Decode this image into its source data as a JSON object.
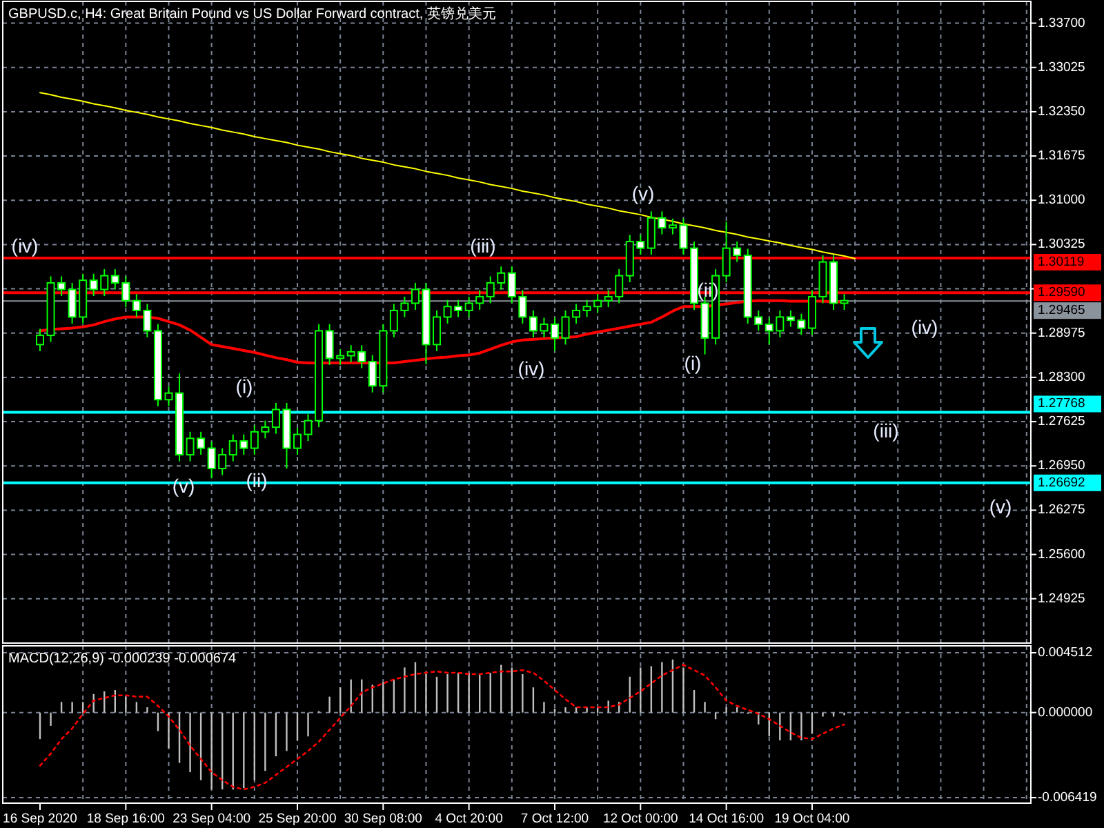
{
  "chart_data": [
    {
      "type": "candlestick",
      "title": "GBPUSD.c, H4:  Great Britain Pound vs US Dollar Forward contract, 英镑兑美元",
      "color": "#00ff00",
      "categories": [
        null,
        null,
        null,
        null,
        null,
        null,
        null,
        null,
        null,
        null,
        null,
        null,
        null,
        null,
        null,
        null,
        null,
        null,
        null,
        null,
        null,
        null,
        null,
        null,
        null,
        null,
        null,
        null,
        null,
        null,
        null,
        null,
        null,
        null,
        null,
        null,
        null,
        null,
        null,
        null,
        null,
        null,
        null,
        null,
        null,
        null,
        null,
        null,
        null,
        null,
        null,
        null,
        null,
        null,
        null,
        null,
        null,
        null,
        null,
        null,
        null,
        null,
        null,
        null,
        null,
        null,
        null,
        null,
        null,
        null,
        null,
        null,
        null,
        null,
        null,
        null,
        null,
        null,
        null,
        null,
        null,
        null,
        null,
        null,
        null,
        null,
        null,
        null,
        null,
        null,
        null,
        null,
        null
      ],
      "ohlc": [
        [
          1.288,
          1.2904,
          1.287,
          1.2894
        ],
        [
          1.2894,
          1.2984,
          1.2884,
          1.2974
        ],
        [
          1.2974,
          1.2984,
          1.2954,
          1.2964
        ],
        [
          1.2964,
          1.2974,
          1.2912,
          1.2922
        ],
        [
          1.2922,
          1.2988,
          1.2912,
          1.2978
        ],
        [
          1.2978,
          1.2988,
          1.2954,
          1.2964
        ],
        [
          1.2964,
          1.2995,
          1.2954,
          1.2985
        ],
        [
          1.2985,
          1.2995,
          1.2964,
          1.2974
        ],
        [
          1.2974,
          1.2984,
          1.2937,
          1.2947
        ],
        [
          1.2947,
          1.2957,
          1.2922,
          1.2932
        ],
        [
          1.2932,
          1.2942,
          1.2891,
          1.2901
        ],
        [
          1.2901,
          1.2911,
          1.2786,
          1.2796
        ],
        [
          1.2796,
          1.2816,
          1.2786,
          1.2806
        ],
        [
          1.2806,
          1.2836,
          1.2702,
          1.2712
        ],
        [
          1.2712,
          1.2747,
          1.2702,
          1.2737
        ],
        [
          1.2737,
          1.2747,
          1.2712,
          1.2722
        ],
        [
          1.2722,
          1.2732,
          1.2676,
          1.2691
        ],
        [
          1.2691,
          1.2722,
          1.2681,
          1.2712
        ],
        [
          1.2712,
          1.2743,
          1.2702,
          1.2733
        ],
        [
          1.2733,
          1.2743,
          1.2712,
          1.2722
        ],
        [
          1.2722,
          1.2757,
          1.2712,
          1.2747
        ],
        [
          1.2747,
          1.2764,
          1.2737,
          1.2754
        ],
        [
          1.2754,
          1.2791,
          1.2744,
          1.2781
        ],
        [
          1.2781,
          1.2791,
          1.2691,
          1.2722
        ],
        [
          1.2722,
          1.2753,
          1.2712,
          1.2743
        ],
        [
          1.2743,
          1.2774,
          1.2733,
          1.2764
        ],
        [
          1.2764,
          1.2911,
          1.2754,
          1.2901
        ],
        [
          1.2901,
          1.2911,
          1.2849,
          1.2859
        ],
        [
          1.2859,
          1.2873,
          1.2849,
          1.2863
        ],
        [
          1.2863,
          1.2879,
          1.2853,
          1.2869
        ],
        [
          1.2869,
          1.2879,
          1.2844,
          1.2854
        ],
        [
          1.2854,
          1.2864,
          1.2807,
          1.2817
        ],
        [
          1.2817,
          1.2911,
          1.2807,
          1.2901
        ],
        [
          1.2901,
          1.2942,
          1.2891,
          1.2932
        ],
        [
          1.2932,
          1.2953,
          1.2922,
          1.2943
        ],
        [
          1.2943,
          1.2974,
          1.2933,
          1.2964
        ],
        [
          1.2964,
          1.2974,
          1.285,
          1.288
        ],
        [
          1.288,
          1.2932,
          1.287,
          1.2922
        ],
        [
          1.2922,
          1.2948,
          1.2912,
          1.2938
        ],
        [
          1.2938,
          1.2948,
          1.2922,
          1.2932
        ],
        [
          1.2932,
          1.2953,
          1.2922,
          1.2943
        ],
        [
          1.2943,
          1.2963,
          1.2933,
          1.2953
        ],
        [
          1.2953,
          1.2984,
          1.2943,
          1.2974
        ],
        [
          1.2974,
          1.2999,
          1.2964,
          1.2989
        ],
        [
          1.2989,
          1.2999,
          1.2943,
          1.2953
        ],
        [
          1.2953,
          1.2963,
          1.2912,
          1.2922
        ],
        [
          1.2922,
          1.2932,
          1.2891,
          1.2901
        ],
        [
          1.2901,
          1.2921,
          1.2891,
          1.2911
        ],
        [
          1.2911,
          1.2921,
          1.287,
          1.289
        ],
        [
          1.289,
          1.2932,
          1.288,
          1.2922
        ],
        [
          1.2922,
          1.2942,
          1.2912,
          1.2932
        ],
        [
          1.2932,
          1.2948,
          1.2922,
          1.2938
        ],
        [
          1.2938,
          1.2957,
          1.2928,
          1.2947
        ],
        [
          1.2947,
          1.2963,
          1.2937,
          1.2953
        ],
        [
          1.2953,
          1.2995,
          1.2943,
          1.2985
        ],
        [
          1.2985,
          1.3047,
          1.2975,
          1.3037
        ],
        [
          1.3037,
          1.3047,
          1.3017,
          1.3027
        ],
        [
          1.3027,
          1.3083,
          1.3017,
          1.3073
        ],
        [
          1.3073,
          1.3083,
          1.3048,
          1.3058
        ],
        [
          1.3058,
          1.3072,
          1.3048,
          1.3062
        ],
        [
          1.3062,
          1.3072,
          1.3017,
          1.3027
        ],
        [
          1.3027,
          1.3037,
          1.2933,
          1.2943
        ],
        [
          1.2943,
          1.2953,
          1.2865,
          1.289
        ],
        [
          1.289,
          1.2995,
          1.288,
          1.2985
        ],
        [
          1.2985,
          1.3067,
          1.2975,
          1.3027
        ],
        [
          1.3027,
          1.3037,
          1.3006,
          1.3016
        ],
        [
          1.3016,
          1.3026,
          1.2912,
          1.2922
        ],
        [
          1.2922,
          1.2932,
          1.2901,
          1.2911
        ],
        [
          1.2911,
          1.2921,
          1.288,
          1.2901
        ],
        [
          1.2901,
          1.2932,
          1.2891,
          1.2922
        ],
        [
          1.2922,
          1.2932,
          1.2907,
          1.2917
        ],
        [
          1.2917,
          1.2927,
          1.2895,
          1.2905
        ],
        [
          1.2905,
          1.2963,
          1.2895,
          1.2953
        ],
        [
          1.2953,
          1.3016,
          1.2943,
          1.3006
        ],
        [
          1.3006,
          1.3016,
          1.2933,
          1.2943
        ],
        [
          1.2943,
          1.2957,
          1.2933,
          1.2947
        ],
        null,
        null,
        null,
        null,
        null,
        null,
        null,
        null,
        null,
        null,
        null,
        null,
        null,
        null,
        null,
        null,
        null
      ],
      "series": [
        {
          "type": "line",
          "color": "#ff0000",
          "values": [
            1.2901,
            1.2903,
            1.2904,
            1.2905,
            1.2907,
            1.291,
            1.2915,
            1.2919,
            1.2922,
            1.2922,
            1.2922,
            1.292,
            1.2915,
            1.291,
            1.2902,
            1.2891,
            1.288,
            1.2877,
            1.2874,
            1.2871,
            1.2868,
            1.2864,
            1.286,
            1.2857,
            1.2853,
            1.2852,
            1.2852,
            1.2852,
            1.2852,
            1.2852,
            1.2852,
            1.2852,
            1.2852,
            1.2852,
            1.2854,
            1.2856,
            1.2858,
            1.286,
            1.2861,
            1.2863,
            1.2864,
            1.2867,
            1.2873,
            1.2879,
            1.2884,
            1.2887,
            1.2888,
            1.2889,
            1.289,
            1.2891,
            1.2892,
            1.2896,
            1.2899,
            1.2902,
            1.2905,
            1.2908,
            1.2911,
            1.2914,
            1.2922,
            1.2931,
            1.2938,
            1.2938,
            1.2938,
            1.294,
            1.2942,
            1.2944,
            1.2946,
            1.2947,
            1.2947,
            1.2947,
            1.2946,
            1.2946,
            1.2946,
            1.2946,
            1.2945,
            1.2945,
            null,
            null,
            null,
            null,
            null,
            null,
            null,
            null,
            null,
            null,
            null,
            null,
            null,
            null,
            null,
            null,
            null
          ]
        },
        {
          "type": "line",
          "color": "#ffff00",
          "values": [
            1.3264,
            1.3261,
            1.3257,
            1.3254,
            1.3251,
            1.3247,
            1.3244,
            1.3241,
            1.3237,
            1.3234,
            1.3231,
            1.3227,
            1.3224,
            1.3221,
            1.3217,
            1.3214,
            1.3211,
            1.3207,
            1.3204,
            1.3201,
            1.3197,
            1.3194,
            1.3191,
            1.3188,
            1.3184,
            1.3181,
            1.3178,
            1.3174,
            1.3171,
            1.3168,
            1.3164,
            1.3161,
            1.3158,
            1.3154,
            1.3151,
            1.3148,
            1.3144,
            1.3141,
            1.3138,
            1.3134,
            1.3131,
            1.3128,
            1.3124,
            1.3121,
            1.3118,
            1.3114,
            1.3111,
            1.3108,
            1.3104,
            1.3101,
            1.3098,
            1.3094,
            1.3091,
            1.3088,
            1.3084,
            1.3081,
            1.3078,
            1.3074,
            1.3071,
            1.3068,
            1.3064,
            1.3061,
            1.3058,
            1.3054,
            1.3051,
            1.3048,
            1.3044,
            1.3041,
            1.3038,
            1.3035,
            1.3031,
            1.3028,
            1.3025,
            1.3021,
            1.3018,
            1.3015,
            1.3011,
            null,
            null,
            null,
            null,
            null,
            null,
            null,
            null,
            null,
            null,
            null,
            null,
            null,
            null,
            null,
            null
          ]
        }
      ],
      "ylim": [
        1.2427,
        1.3399
      ],
      "yticks": [
        {
          "value": 1.337,
          "label": "1.33700"
        },
        {
          "value": 1.33025,
          "label": "1.33025"
        },
        {
          "value": 1.3235,
          "label": "1.32350"
        },
        {
          "value": 1.31675,
          "label": "1.31675"
        },
        {
          "value": 1.31,
          "label": "1.31000"
        },
        {
          "value": 1.30325,
          "label": "1.30325"
        },
        {
          "value": 1.2965,
          "label": null
        },
        {
          "value": 1.28975,
          "label": "1.28975"
        },
        {
          "value": 1.283,
          "label": "1.28300"
        },
        {
          "value": 1.27625,
          "label": "1.27625"
        },
        {
          "value": 1.2695,
          "label": "1.26950"
        },
        {
          "value": 1.26275,
          "label": "1.26275"
        },
        {
          "value": 1.256,
          "label": "1.25600"
        },
        {
          "value": 1.24925,
          "label": "1.24925"
        }
      ],
      "tick_labels": "y",
      "grid": true,
      "ref_lines": [
        {
          "axis": "y",
          "value": 1.30119,
          "label": "1.30119",
          "color": "#ff0000"
        },
        {
          "axis": "y",
          "value": 1.2959,
          "label": "1.29590",
          "color": "#ff0000"
        },
        {
          "axis": "y",
          "value": 1.29465,
          "label": "1.29465",
          "color": "#8a929c"
        },
        {
          "axis": "y",
          "value": 1.27768,
          "label": "1.27768",
          "color": "#00ffff"
        },
        {
          "axis": "y",
          "value": 1.26692,
          "label": "1.26692",
          "color": "#00ffff"
        }
      ],
      "annotations": [
        "(iv)",
        "(v)",
        "(i)",
        "(ii)",
        "(iii)",
        "(iv)",
        "(v)",
        "(i)",
        {
          "text": "(ii)",
          "y": 1.2964
        },
        "(iv)",
        "(iii)",
        "(v)"
      ]
    },
    {
      "type": "bar",
      "title": "MACD(12,26,9) -0.000239 -0.000674",
      "categories": [
        "16 Sep 2020",
        null,
        null,
        null,
        null,
        null,
        null,
        null,
        "18 Sep 16:00",
        null,
        null,
        null,
        null,
        null,
        null,
        null,
        "23 Sep 04:00",
        null,
        null,
        null,
        null,
        null,
        null,
        null,
        "25 Sep 20:00",
        null,
        null,
        null,
        null,
        null,
        null,
        null,
        "30 Sep 08:00",
        null,
        null,
        null,
        null,
        null,
        null,
        null,
        "4 Oct 20:00",
        null,
        null,
        null,
        null,
        null,
        null,
        null,
        "7 Oct 12:00",
        null,
        null,
        null,
        null,
        null,
        null,
        null,
        "12 Oct 00:00",
        null,
        null,
        null,
        null,
        null,
        null,
        null,
        "14 Oct 16:00",
        null,
        null,
        null,
        null,
        null,
        null,
        null,
        "19 Oct 04:00",
        null,
        null,
        null,
        null,
        null,
        null,
        null,
        null,
        null,
        null,
        null,
        null,
        null,
        null,
        null,
        null,
        null,
        null,
        null,
        null
      ],
      "series": [
        {
          "type": "bar",
          "color": "#c0c0c0",
          "values": [
            -0.002,
            -0.001,
            0.0008,
            0.0008,
            0.0008,
            0.0014,
            0.0016,
            0.0017,
            0.0012,
            0.0008,
            0.0004,
            -0.0014,
            -0.0027,
            -0.0038,
            -0.0045,
            -0.0051,
            -0.0058,
            -0.0058,
            -0.0058,
            -0.0057,
            -0.0051,
            -0.0044,
            -0.0033,
            -0.0029,
            -0.0021,
            -0.0018,
            0.0001,
            0.0012,
            0.0019,
            0.0025,
            0.0025,
            0.0021,
            0.0023,
            0.0025,
            0.0034,
            0.0038,
            0.0029,
            0.0027,
            0.0029,
            0.003,
            0.003,
            0.0029,
            0.003,
            0.0036,
            0.0034,
            0.0029,
            0.0019,
            0.0008,
            0.0003,
            0.0004,
            0.0004,
            0.0004,
            0.0004,
            0.0009,
            0.0008,
            0.0027,
            0.0034,
            0.0035,
            0.0038,
            0.004,
            0.0034,
            0.0017,
            0.0008,
            -0.0005,
            0.0004,
            0.0004,
            -0.0001,
            -0.0009,
            -0.0018,
            -0.0021,
            -0.0021,
            -0.0021,
            -0.0016,
            -0.0003,
            -0.0003,
            -0.0002,
            null,
            null,
            null,
            null,
            null,
            null,
            null,
            null,
            null,
            null,
            null,
            null,
            null,
            null,
            null,
            null,
            null
          ]
        },
        {
          "type": "line",
          "color": "#ff0000",
          "line_style": "dotted",
          "values": [
            -0.004,
            -0.0031,
            -0.002,
            -0.0012,
            -0.0001,
            0.0009,
            0.0011,
            0.0013,
            0.0013,
            0.0012,
            0.0012,
            0.0005,
            -0.0003,
            -0.0013,
            -0.0025,
            -0.0035,
            -0.0045,
            -0.0051,
            -0.0056,
            -0.0058,
            -0.0056,
            -0.0053,
            -0.0047,
            -0.0041,
            -0.0035,
            -0.0029,
            -0.0022,
            -0.0013,
            -0.0004,
            0.0005,
            0.0015,
            0.0019,
            0.0022,
            0.0025,
            0.0027,
            0.0029,
            0.003,
            0.0031,
            0.003,
            0.003,
            0.0029,
            0.0029,
            0.003,
            0.0031,
            0.0031,
            0.0032,
            0.003,
            0.0024,
            0.0017,
            0.001,
            0.0004,
            0.0004,
            0.0004,
            0.0004,
            0.0006,
            0.0011,
            0.0016,
            0.0022,
            0.0028,
            0.0032,
            0.0036,
            0.0032,
            0.0028,
            0.0019,
            0.0009,
            0.0005,
            0.0002,
            -0.0001,
            -0.0005,
            -0.001,
            -0.0015,
            -0.0019,
            -0.002,
            -0.0016,
            -0.0012,
            -0.0009,
            null,
            null,
            null,
            null,
            null,
            null,
            null,
            null,
            null,
            null,
            null,
            null,
            null,
            null,
            null,
            null,
            null
          ]
        }
      ],
      "ylim": [
        -0.006419,
        0.004512
      ],
      "yticks": [
        {
          "value": 0.004512,
          "label": "0.004512"
        },
        {
          "value": 0,
          "label": "0.000000"
        },
        {
          "value": -0.006419,
          "label": "-0.006419"
        }
      ],
      "grid": true
    }
  ]
}
